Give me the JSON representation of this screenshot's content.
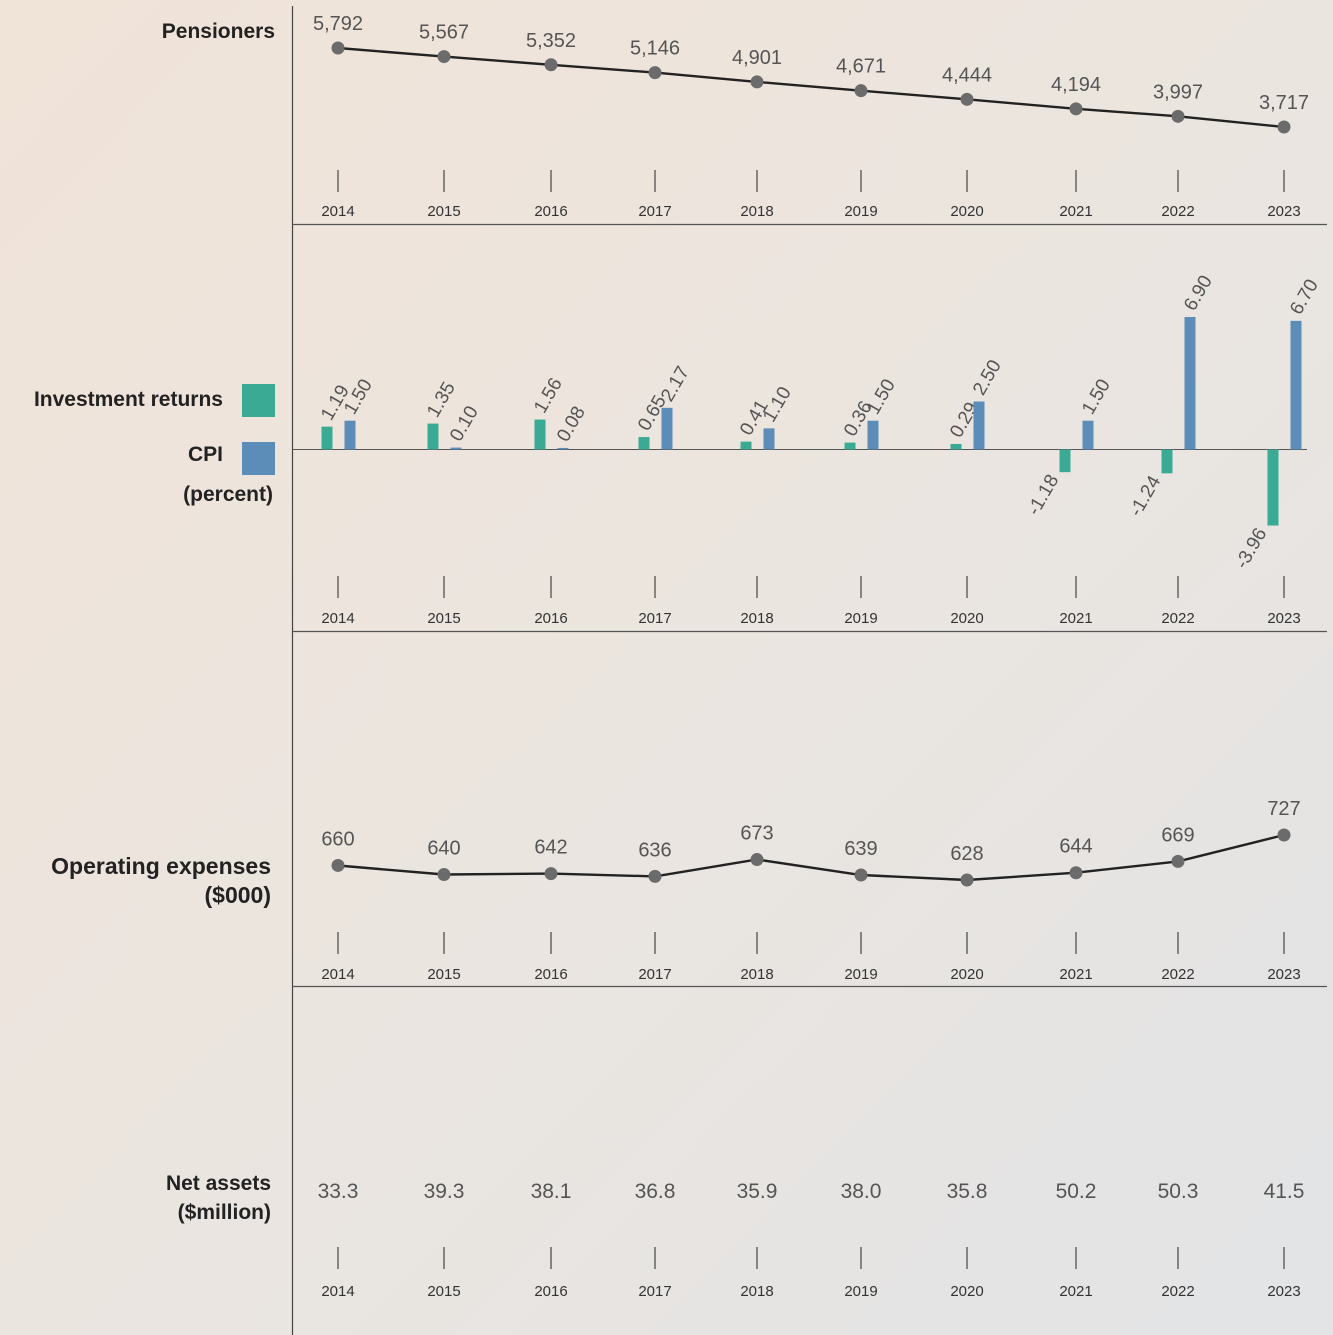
{
  "colors": {
    "investment": "#3aaa94",
    "cpi": "#5b8db8",
    "line": "#222222",
    "marker": "#6b6b6b",
    "axis": "#444444",
    "value_text": "#555555"
  },
  "labels": {
    "pensioners": "Pensioners",
    "investment_returns": "Investment returns",
    "cpi": "CPI",
    "percent": "(percent)",
    "operating_expenses_1": "Operating expenses",
    "operating_expenses_2": "($000)",
    "net_assets_1": "Net assets",
    "net_assets_2": "($million)"
  },
  "chart_data": [
    {
      "type": "line",
      "categories": [
        "2014",
        "2015",
        "2016",
        "2017",
        "2018",
        "2019",
        "2020",
        "2021",
        "2022",
        "2023"
      ],
      "series": [
        {
          "name": "Pensioners",
          "values": [
            5792,
            5567,
            5352,
            5146,
            4901,
            4671,
            4444,
            4194,
            3997,
            3717
          ]
        }
      ],
      "value_labels": [
        "5,792",
        "5,567",
        "5,352",
        "5,146",
        "4,901",
        "4,671",
        "4,444",
        "4,194",
        "3,997",
        "3,717"
      ]
    },
    {
      "type": "bar",
      "categories": [
        "2014",
        "2015",
        "2016",
        "2017",
        "2018",
        "2019",
        "2020",
        "2021",
        "2022",
        "2023"
      ],
      "series": [
        {
          "name": "Investment returns",
          "values": [
            1.19,
            1.35,
            1.56,
            0.65,
            0.41,
            0.36,
            0.29,
            -1.18,
            -1.24,
            -3.96
          ]
        },
        {
          "name": "CPI",
          "values": [
            1.5,
            0.1,
            0.08,
            2.17,
            1.1,
            1.5,
            2.5,
            1.5,
            6.9,
            6.7
          ]
        }
      ],
      "value_labels": {
        "investment": [
          "1.19",
          "1.35",
          "1.56",
          "0.65",
          "0.41",
          "0.36",
          "0.29",
          "-1.18",
          "-1.24",
          "-3.96"
        ],
        "cpi": [
          "1.50",
          "0.10",
          "0.08",
          "2.17",
          "1.10",
          "1.50",
          "2.50",
          "1.50",
          "6.90",
          "6.70"
        ]
      }
    },
    {
      "type": "line",
      "categories": [
        "2014",
        "2015",
        "2016",
        "2017",
        "2018",
        "2019",
        "2020",
        "2021",
        "2022",
        "2023"
      ],
      "series": [
        {
          "name": "Operating expenses",
          "values": [
            660,
            640,
            642,
            636,
            673,
            639,
            628,
            644,
            669,
            727
          ]
        }
      ],
      "value_labels": [
        "660",
        "640",
        "642",
        "636",
        "673",
        "639",
        "628",
        "644",
        "669",
        "727"
      ]
    },
    {
      "type": "table",
      "categories": [
        "2014",
        "2015",
        "2016",
        "2017",
        "2018",
        "2019",
        "2020",
        "2021",
        "2022",
        "2023"
      ],
      "series": [
        {
          "name": "Net assets",
          "values": [
            33.3,
            39.3,
            38.1,
            36.8,
            35.9,
            38.0,
            35.8,
            50.2,
            50.3,
            41.5
          ]
        }
      ],
      "value_labels": [
        "33.3",
        "39.3",
        "38.1",
        "36.8",
        "35.9",
        "38.0",
        "35.8",
        "50.2",
        "50.3",
        "41.5"
      ]
    }
  ]
}
